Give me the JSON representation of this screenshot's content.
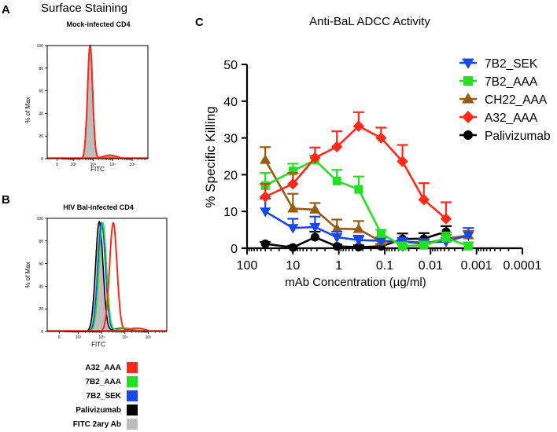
{
  "panels": {
    "A": {
      "letter": "A",
      "heading": "Surface Staining",
      "subtitle": "Mock-infected CD4",
      "ylabel": "% of Max",
      "xlabel": "FITC",
      "yticks": [
        "0",
        "20",
        "40",
        "60",
        "80",
        "100"
      ],
      "xticks": [
        "0",
        "10²",
        "10³",
        "10⁴",
        "10⁵"
      ]
    },
    "B": {
      "letter": "B",
      "subtitle": "HIV Bal-infected CD4",
      "ylabel": "% of Max",
      "xlabel": "FITC",
      "yticks": [
        "0",
        "20",
        "40",
        "60",
        "80",
        "100"
      ],
      "xticks": [
        "0",
        "10²",
        "10³",
        "10⁴",
        "10⁵"
      ]
    },
    "C": {
      "letter": "C"
    }
  },
  "histogram_legend": [
    {
      "label": "A32_AAA",
      "color": "#ff2a1a"
    },
    {
      "label": "7B2_AAA",
      "color": "#22e022"
    },
    {
      "label": "7B2_SEK",
      "color": "#1848e8"
    },
    {
      "label": "Palivizumab",
      "color": "#000000"
    },
    {
      "label": "FITC 2ary Ab",
      "color": "#bdbdbd"
    }
  ],
  "chart_data": [
    {
      "type": "area",
      "panel": "A",
      "title": "Mock-infected CD4",
      "xlabel": "FITC",
      "ylabel": "% of Max",
      "ylim": [
        0,
        100
      ],
      "xlim": [
        -100,
        300000
      ],
      "x_scale": "biexponential",
      "peak_log10_fitc": 2.85,
      "series": [
        {
          "name": "FITC 2ary Ab",
          "peak_log10_fitc": 2.85,
          "peak": 100
        },
        {
          "name": "A32_AAA",
          "peak_log10_fitc": 2.85,
          "peak": 100
        },
        {
          "name": "7B2_AAA",
          "peak_log10_fitc": 2.85,
          "peak": 100
        },
        {
          "name": "7B2_SEK",
          "peak_log10_fitc": 2.85,
          "peak": 100
        },
        {
          "name": "Palivizumab",
          "peak_log10_fitc": 2.85,
          "peak": 100
        }
      ]
    },
    {
      "type": "area",
      "panel": "B",
      "title": "HIV Bal-infected CD4",
      "xlabel": "FITC",
      "ylabel": "% of Max",
      "ylim": [
        0,
        100
      ],
      "xlim": [
        -100,
        300000
      ],
      "x_scale": "biexponential",
      "series": [
        {
          "name": "FITC 2ary Ab",
          "peak_log10_fitc": 2.9,
          "peak": 97
        },
        {
          "name": "Palivizumab",
          "peak_log10_fitc": 2.9,
          "peak": 97
        },
        {
          "name": "7B2_SEK",
          "peak_log10_fitc": 3.0,
          "peak": 96
        },
        {
          "name": "7B2_AAA",
          "peak_log10_fitc": 3.05,
          "peak": 96
        },
        {
          "name": "A32_AAA",
          "peak_log10_fitc": 3.5,
          "peak": 96
        }
      ]
    },
    {
      "type": "line",
      "panel": "C",
      "title": "Anti-BaL ADCC Activity",
      "xlabel": "mAb Concentration (µg/ml)",
      "ylabel": "% Specific Killing",
      "x_scale": "log",
      "x_reversed": true,
      "xlim": [
        100,
        0.0001
      ],
      "ylim": [
        0,
        50
      ],
      "xticks": [
        "100",
        "10",
        "1",
        "0.1",
        "0.01",
        "0.001",
        "0.0001"
      ],
      "yticks": [
        "0",
        "10",
        "20",
        "30",
        "40",
        "50"
      ],
      "x": [
        40,
        10,
        3.3,
        1.1,
        0.37,
        0.12,
        0.041,
        0.014,
        0.0046,
        0.0015
      ],
      "series": [
        {
          "name": "7B2_SEK",
          "color": "#1848e8",
          "marker": "triangle-down",
          "values": [
            10,
            5.5,
            5.8,
            3,
            2.2,
            2,
            1.8,
            1.5,
            1.8,
            3.5
          ],
          "errors": [
            3.5,
            2.5,
            2.8,
            1.5,
            1.2,
            1,
            1,
            1,
            1,
            2
          ]
        },
        {
          "name": "7B2_AAA",
          "color": "#22e022",
          "marker": "square",
          "values": [
            17,
            21,
            24,
            18.3,
            16,
            4,
            0.6,
            0.8,
            2.8,
            0.6
          ],
          "errors": [
            3.5,
            2,
            1.2,
            3,
            3.5,
            1,
            1,
            1,
            1.5,
            1
          ]
        },
        {
          "name": "CH22_AAA",
          "color": "#9a5a10",
          "marker": "triangle-up",
          "values": [
            24,
            10.8,
            10.5,
            5.3,
            5.2,
            1.8,
            1.8,
            1.2,
            2.6,
            3.5
          ],
          "errors": [
            3.5,
            4,
            1.8,
            2.5,
            2.2,
            1,
            1,
            1,
            1,
            1.2
          ]
        },
        {
          "name": "A32_AAA",
          "color": "#ff2a1a",
          "marker": "diamond",
          "values": [
            14,
            17.5,
            24.6,
            27.6,
            33.2,
            30,
            23.6,
            13.2,
            8,
            null
          ],
          "errors": [
            3.5,
            3,
            2.8,
            4.2,
            3.8,
            2.8,
            4.5,
            4.5,
            4.5,
            null
          ]
        },
        {
          "name": "Palivizumab",
          "color": "#000000",
          "marker": "circle",
          "values": [
            1.2,
            0.2,
            3,
            0.5,
            0.3,
            0.5,
            2.5,
            2.6,
            4.5,
            null
          ],
          "errors": [
            0.5,
            0.5,
            1.5,
            0.5,
            0.5,
            0.5,
            1.5,
            1.5,
            1.5,
            null
          ]
        }
      ]
    }
  ]
}
